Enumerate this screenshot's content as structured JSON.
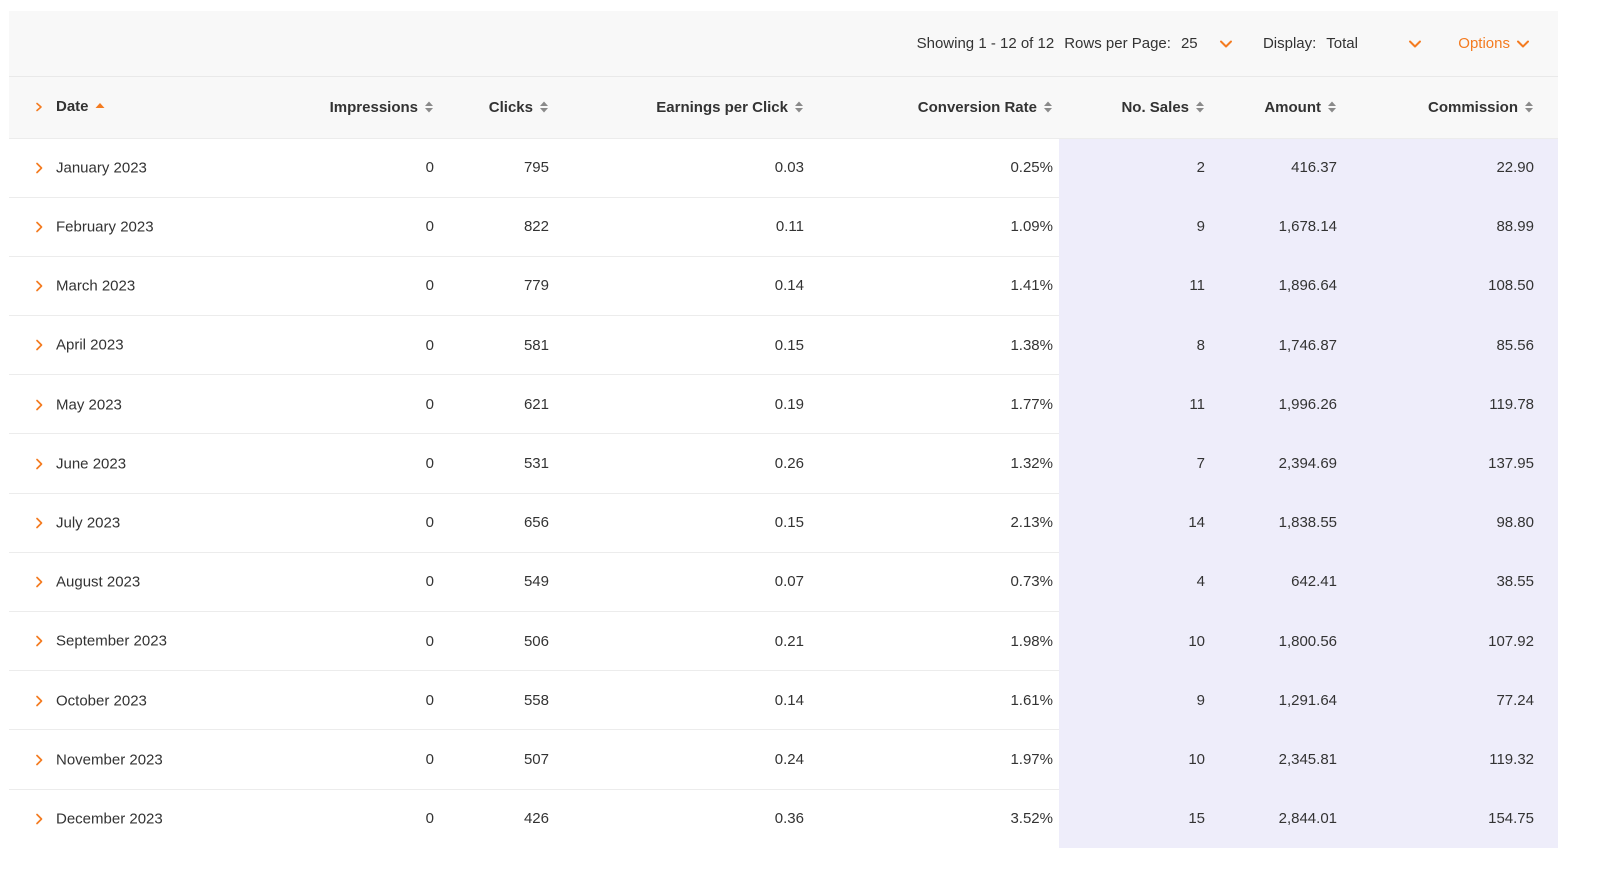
{
  "toolbar": {
    "showing": "Showing 1 - 12 of 12",
    "rows_per_page_label": "Rows per Page:",
    "rows_per_page_value": "25",
    "display_label": "Display:",
    "display_value": "Total",
    "options_label": "Options"
  },
  "colors": {
    "accent": "#f47b20",
    "highlight": "#eeedfa",
    "header_bg": "#f8f8f8",
    "sort_icon": "#8a8a8a"
  },
  "table": {
    "headers": {
      "date": "Date",
      "impressions": "Impressions",
      "clicks": "Clicks",
      "epc": "Earnings per Click",
      "conversion": "Conversion Rate",
      "sales": "No. Sales",
      "amount": "Amount",
      "commission": "Commission"
    },
    "rows": [
      {
        "date": "January 2023",
        "impressions": "0",
        "clicks": "795",
        "epc": "0.03",
        "conversion": "0.25%",
        "sales": "2",
        "amount": "416.37",
        "commission": "22.90"
      },
      {
        "date": "February 2023",
        "impressions": "0",
        "clicks": "822",
        "epc": "0.11",
        "conversion": "1.09%",
        "sales": "9",
        "amount": "1,678.14",
        "commission": "88.99"
      },
      {
        "date": "March 2023",
        "impressions": "0",
        "clicks": "779",
        "epc": "0.14",
        "conversion": "1.41%",
        "sales": "11",
        "amount": "1,896.64",
        "commission": "108.50"
      },
      {
        "date": "April 2023",
        "impressions": "0",
        "clicks": "581",
        "epc": "0.15",
        "conversion": "1.38%",
        "sales": "8",
        "amount": "1,746.87",
        "commission": "85.56"
      },
      {
        "date": "May 2023",
        "impressions": "0",
        "clicks": "621",
        "epc": "0.19",
        "conversion": "1.77%",
        "sales": "11",
        "amount": "1,996.26",
        "commission": "119.78"
      },
      {
        "date": "June 2023",
        "impressions": "0",
        "clicks": "531",
        "epc": "0.26",
        "conversion": "1.32%",
        "sales": "7",
        "amount": "2,394.69",
        "commission": "137.95"
      },
      {
        "date": "July 2023",
        "impressions": "0",
        "clicks": "656",
        "epc": "0.15",
        "conversion": "2.13%",
        "sales": "14",
        "amount": "1,838.55",
        "commission": "98.80"
      },
      {
        "date": "August 2023",
        "impressions": "0",
        "clicks": "549",
        "epc": "0.07",
        "conversion": "0.73%",
        "sales": "4",
        "amount": "642.41",
        "commission": "38.55"
      },
      {
        "date": "September 2023",
        "impressions": "0",
        "clicks": "506",
        "epc": "0.21",
        "conversion": "1.98%",
        "sales": "10",
        "amount": "1,800.56",
        "commission": "107.92"
      },
      {
        "date": "October 2023",
        "impressions": "0",
        "clicks": "558",
        "epc": "0.14",
        "conversion": "1.61%",
        "sales": "9",
        "amount": "1,291.64",
        "commission": "77.24"
      },
      {
        "date": "November 2023",
        "impressions": "0",
        "clicks": "507",
        "epc": "0.24",
        "conversion": "1.97%",
        "sales": "10",
        "amount": "2,345.81",
        "commission": "119.32"
      },
      {
        "date": "December 2023",
        "impressions": "0",
        "clicks": "426",
        "epc": "0.36",
        "conversion": "3.52%",
        "sales": "15",
        "amount": "2,844.01",
        "commission": "154.75"
      }
    ]
  }
}
